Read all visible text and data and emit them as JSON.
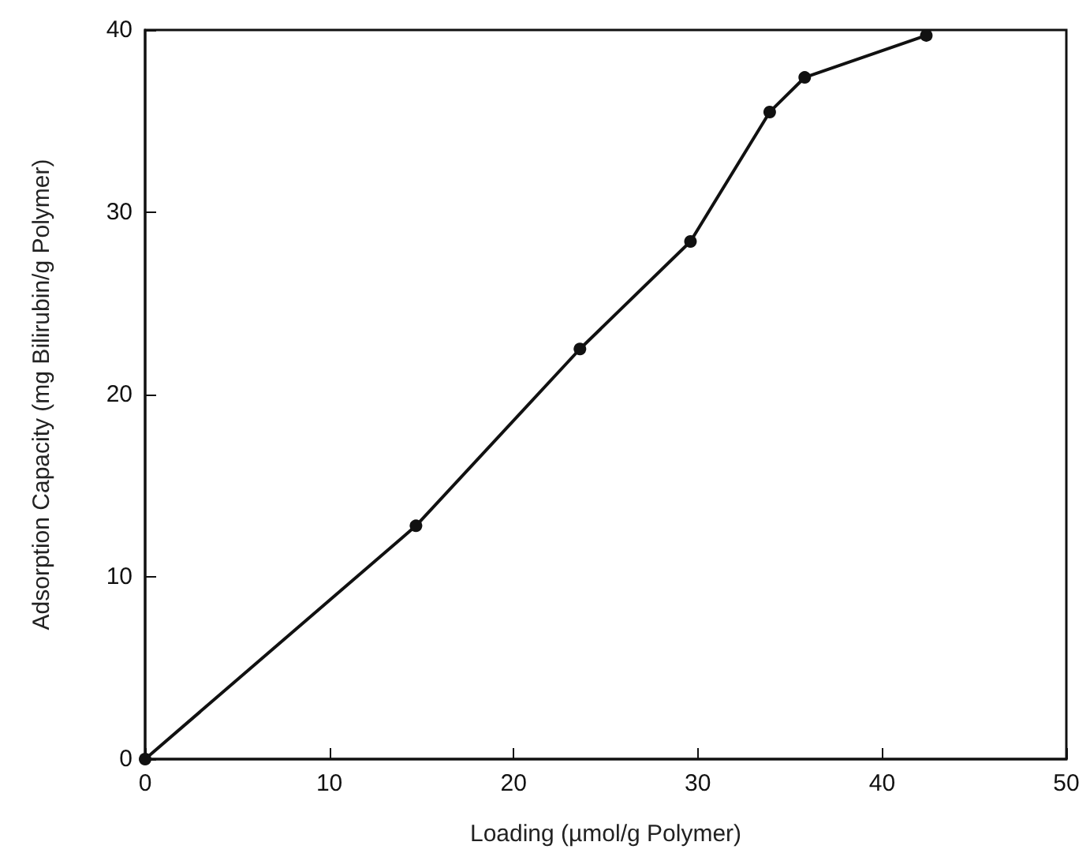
{
  "chart_data": {
    "type": "line",
    "xlabel": "Loading (µmol/g Polymer)",
    "ylabel": "Adsorption Capacity (mg Bilirubin/g Polymer)",
    "x": [
      0,
      14.7,
      23.6,
      29.6,
      33.9,
      35.8,
      42.4
    ],
    "series": [
      {
        "color": "#111111",
        "values": [
          0,
          12.8,
          22.5,
          28.4,
          35.5,
          37.4,
          39.7
        ]
      }
    ],
    "xlim": [
      0,
      50
    ],
    "xticks": [
      0,
      10,
      20,
      30,
      40,
      50
    ],
    "ylim": [
      0,
      40
    ],
    "yticks": [
      0,
      10,
      20,
      30,
      40
    ],
    "marker": "circle",
    "line_style": "solid"
  }
}
